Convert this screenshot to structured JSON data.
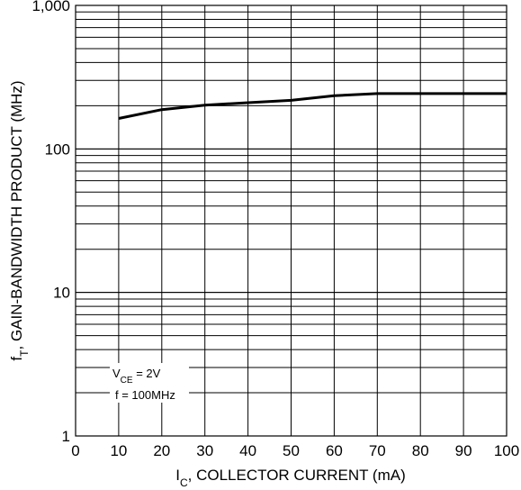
{
  "chart_data": {
    "type": "line",
    "title": "",
    "xlabel": {
      "main": "I",
      "sub": "C",
      "rest": ", COLLECTOR CURRENT (mA)"
    },
    "ylabel": {
      "main": "f",
      "sub": "T",
      "rest": ", GAIN-BANDWIDTH PRODUCT (MHz)"
    },
    "x_scale": "linear",
    "y_scale": "log",
    "xlim": [
      0,
      100
    ],
    "ylim": [
      1,
      1000
    ],
    "grid": true,
    "x_ticks": [
      "0",
      "10",
      "20",
      "30",
      "40",
      "50",
      "60",
      "70",
      "80",
      "90",
      "100"
    ],
    "y_ticks": [
      {
        "value": 1,
        "label": "1"
      },
      {
        "value": 10,
        "label": "10"
      },
      {
        "value": 100,
        "label": "100"
      },
      {
        "value": 1000,
        "label": "1,000"
      }
    ],
    "series": [
      {
        "x": [
          10,
          20,
          30,
          40,
          50,
          60,
          70,
          80,
          90,
          100
        ],
        "y": [
          163,
          188,
          202,
          210,
          218,
          235,
          243,
          243,
          243,
          243
        ]
      }
    ],
    "annotations": {
      "vce": {
        "main": "V",
        "sub": "CE",
        "rest": " = 2V"
      },
      "freq": "f = 100MHz"
    }
  }
}
